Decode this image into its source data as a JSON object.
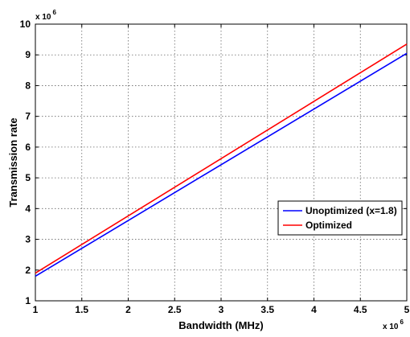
{
  "chart_data": {
    "type": "line",
    "xlabel": "Bandwidth (MHz)",
    "ylabel": "Transmission rate",
    "xlim": [
      1,
      5
    ],
    "ylim": [
      1,
      10
    ],
    "x_ticks": [
      1,
      1.5,
      2,
      2.5,
      3,
      3.5,
      4,
      4.5,
      5
    ],
    "x_tick_labels": [
      "1",
      "1.5",
      "2",
      "2.5",
      "3",
      "3.5",
      "4",
      "4.5",
      "5"
    ],
    "y_ticks": [
      1,
      2,
      3,
      4,
      5,
      6,
      7,
      8,
      9,
      10
    ],
    "y_tick_labels": [
      "1",
      "2",
      "3",
      "4",
      "5",
      "6",
      "7",
      "8",
      "9",
      "10"
    ],
    "x_multiplier": {
      "base": "x 10",
      "power": "6"
    },
    "y_multiplier": {
      "base": "x 10",
      "power": "6"
    },
    "grid": true,
    "legend_position": "right",
    "series": [
      {
        "name": "Unoptimized (x=1.8)",
        "color": "#0000ff",
        "x": [
          1,
          5
        ],
        "y": [
          1.8,
          9.05
        ]
      },
      {
        "name": "Optimized",
        "color": "#ff0000",
        "x": [
          1,
          5
        ],
        "y": [
          1.9,
          9.35
        ]
      }
    ]
  }
}
